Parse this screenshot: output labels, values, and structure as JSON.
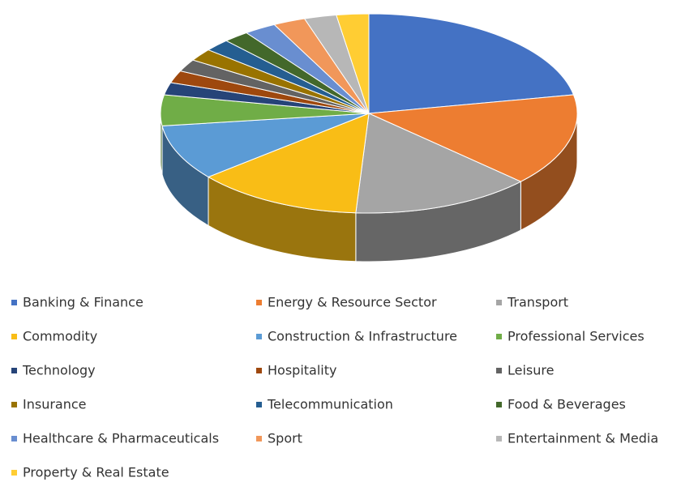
{
  "chart_data": {
    "type": "pie3d",
    "categories": [
      "Banking & Finance",
      "Energy & Resource Sector",
      "Transport",
      "Commodity",
      "Construction & Infrastructure",
      "Professional Services",
      "Technology",
      "Hospitality",
      "Leisure",
      "Insurance",
      "Telecommunication",
      "Food & Beverages",
      "Healthcare & Pharmaceuticals",
      "Sport",
      "Entertainment & Media",
      "Property & Real Estate"
    ],
    "values": [
      22,
      15,
      14,
      13,
      9,
      5,
      2,
      2,
      2,
      2,
      2,
      2,
      2.5,
      2.5,
      2.5,
      2.5
    ],
    "colors": [
      "#4472c4",
      "#ed7d31",
      "#a5a5a5",
      "#f9bd16",
      "#5b9bd5",
      "#70ad47",
      "#264478",
      "#9e480e",
      "#636363",
      "#997300",
      "#255e91",
      "#43682b",
      "#698ed0",
      "#f1975a",
      "#b7b7b7",
      "#ffcd33"
    ],
    "legend": "bottom"
  }
}
